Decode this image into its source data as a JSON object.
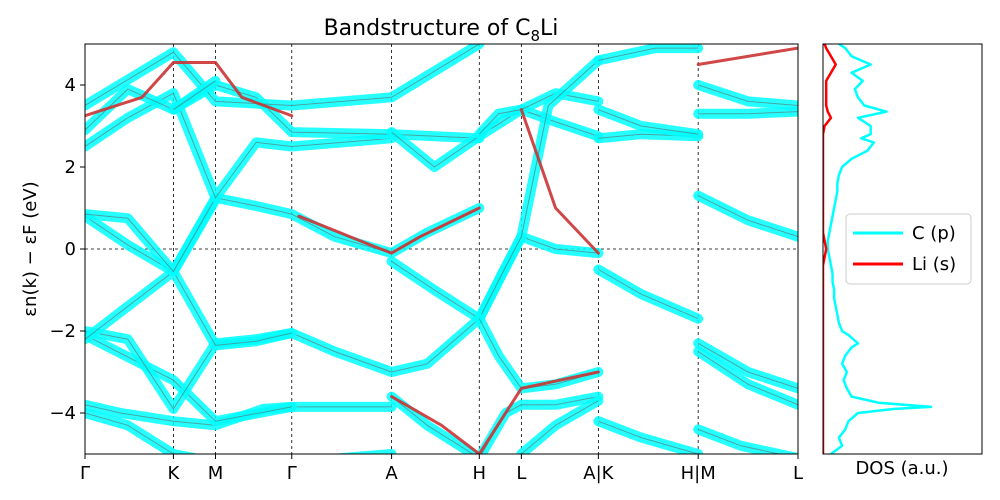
{
  "chart_data": [
    {
      "type": "line",
      "title_main": "Bandstructure of C",
      "title_sub": "8",
      "title_tail": "Li",
      "xlabel": "",
      "ylabel": "εn(k) − εF (eV)",
      "ylim": [
        -5,
        5
      ],
      "yticks": [
        -4,
        -2,
        0,
        2,
        4
      ],
      "ytick_labels": [
        "−4",
        "−2",
        "0",
        "2",
        "4"
      ],
      "kpath": [
        "Γ",
        "K",
        "M",
        "Γ",
        "A",
        "H",
        "L",
        "A|K",
        "H|M",
        "L"
      ],
      "kpos": [
        0.0,
        0.124,
        0.183,
        0.29,
        0.43,
        0.553,
        0.612,
        0.72,
        0.86,
        1.0
      ],
      "fermi_level": 0,
      "grid": "vertical dashed lines at high-symmetry points",
      "series": [
        {
          "role": "band-projection-C",
          "color": "#00ffff",
          "width": 10
        },
        {
          "role": "band-projection-Li",
          "color": "#cc3333",
          "width": 3
        }
      ],
      "bands": [
        {
          "kind": "c",
          "x": [
            0.0,
            0.06,
            0.124,
            0.183,
            0.29,
            0.43
          ],
          "y": [
            -4.0,
            -4.3,
            -5.0,
            -5.2,
            -5.2,
            -5.0
          ]
        },
        {
          "kind": "c",
          "x": [
            0.0,
            0.05,
            0.124,
            0.183,
            0.25,
            0.29,
            0.43
          ],
          "y": [
            -3.8,
            -4.0,
            -4.2,
            -4.3,
            -3.9,
            -3.85,
            -3.85
          ]
        },
        {
          "kind": "c",
          "x": [
            0.0,
            0.124,
            0.183,
            0.29
          ],
          "y": [
            -2.1,
            -3.2,
            -4.2,
            -3.85
          ]
        },
        {
          "kind": "c",
          "x": [
            0.0,
            0.06,
            0.124,
            0.183,
            0.24,
            0.29,
            0.35,
            0.43,
            0.48,
            0.553
          ],
          "y": [
            -2.0,
            -2.2,
            -3.9,
            -2.3,
            -2.2,
            -2.05,
            -2.5,
            -3.0,
            -2.8,
            -1.7
          ]
        },
        {
          "kind": "c",
          "x": [
            0.0,
            0.06,
            0.124,
            0.183,
            0.24,
            0.29
          ],
          "y": [
            -2.2,
            -1.4,
            -0.55,
            -2.35,
            -2.25,
            -2.05
          ]
        },
        {
          "kind": "c",
          "x": [
            0.0,
            0.06,
            0.124,
            0.183
          ],
          "y": [
            0.8,
            0.1,
            -0.55,
            1.2
          ]
        },
        {
          "kind": "c",
          "x": [
            0.0,
            0.06,
            0.124,
            0.183,
            0.24,
            0.29,
            0.35,
            0.43,
            0.48,
            0.553
          ],
          "y": [
            0.85,
            0.75,
            -0.55,
            1.25,
            1.05,
            0.85,
            0.3,
            -0.1,
            0.4,
            1.0
          ]
        },
        {
          "kind": "c",
          "x": [
            0.0,
            0.06,
            0.124,
            0.183,
            0.24,
            0.29,
            0.43
          ],
          "y": [
            2.5,
            3.2,
            3.8,
            1.25,
            2.6,
            2.5,
            2.7
          ]
        },
        {
          "kind": "c",
          "x": [
            0.0,
            0.06,
            0.124,
            0.183,
            0.24,
            0.29,
            0.43,
            0.553
          ],
          "y": [
            2.9,
            3.9,
            3.4,
            4.0,
            3.7,
            2.85,
            2.8,
            2.7
          ]
        },
        {
          "kind": "c",
          "x": [
            0.0,
            0.124,
            0.183,
            0.29,
            0.43,
            0.553
          ],
          "y": [
            3.5,
            4.8,
            3.6,
            3.5,
            3.7,
            5.0
          ]
        },
        {
          "kind": "c",
          "x": [
            0.124,
            0.183
          ],
          "y": [
            3.4,
            4.1
          ]
        },
        {
          "kind": "c",
          "x": [
            0.43,
            0.48,
            0.553,
            0.59,
            0.612,
            0.66,
            0.72
          ],
          "y": [
            -3.6,
            -4.3,
            -5.1,
            -4.0,
            -3.8,
            -3.8,
            -3.6
          ]
        },
        {
          "kind": "c",
          "x": [
            0.43,
            0.49,
            0.553,
            0.612,
            0.66,
            0.72
          ],
          "y": [
            -0.3,
            -1.0,
            -1.7,
            0.3,
            0.0,
            -0.1
          ]
        },
        {
          "kind": "c",
          "x": [
            0.43,
            0.49,
            0.553,
            0.612,
            0.66,
            0.72
          ],
          "y": [
            2.85,
            2.0,
            2.75,
            3.4,
            3.1,
            2.75
          ]
        },
        {
          "kind": "c",
          "x": [
            0.553,
            0.58,
            0.612,
            0.66,
            0.72
          ],
          "y": [
            2.8,
            3.3,
            3.4,
            3.8,
            3.6
          ]
        },
        {
          "kind": "c",
          "x": [
            0.553,
            0.585,
            0.612,
            0.65,
            0.72
          ],
          "y": [
            -1.7,
            -0.6,
            0.3,
            3.5,
            4.6
          ]
        },
        {
          "kind": "c",
          "x": [
            0.553,
            0.58,
            0.612,
            0.66,
            0.72
          ],
          "y": [
            -1.7,
            -2.6,
            -3.4,
            -3.3,
            -3.0
          ]
        },
        {
          "kind": "c",
          "x": [
            0.612,
            0.66,
            0.72
          ],
          "y": [
            -5.0,
            -4.3,
            -3.7
          ]
        },
        {
          "kind": "c",
          "x": [
            0.72,
            0.78,
            0.86
          ],
          "y": [
            -4.2,
            -4.6,
            -5.0
          ]
        },
        {
          "kind": "c",
          "x": [
            0.72,
            0.78,
            0.86
          ],
          "y": [
            -0.5,
            -1.1,
            -1.7
          ]
        },
        {
          "kind": "c",
          "x": [
            0.72,
            0.78,
            0.86
          ],
          "y": [
            2.7,
            2.8,
            2.75
          ]
        },
        {
          "kind": "c",
          "x": [
            0.72,
            0.78,
            0.86
          ],
          "y": [
            3.4,
            3.0,
            2.8
          ]
        },
        {
          "kind": "c",
          "x": [
            0.72,
            0.8,
            0.86
          ],
          "y": [
            4.6,
            4.9,
            4.9
          ]
        },
        {
          "kind": "c",
          "x": [
            0.86,
            0.92,
            1.0
          ],
          "y": [
            -4.4,
            -4.8,
            -5.1
          ]
        },
        {
          "kind": "c",
          "x": [
            0.86,
            0.93,
            1.0
          ],
          "y": [
            -2.3,
            -3.0,
            -3.4
          ]
        },
        {
          "kind": "c",
          "x": [
            0.86,
            0.93,
            1.0
          ],
          "y": [
            -2.5,
            -3.3,
            -3.8
          ]
        },
        {
          "kind": "c",
          "x": [
            0.86,
            0.93,
            1.0
          ],
          "y": [
            1.3,
            0.7,
            0.3
          ]
        },
        {
          "kind": "c",
          "x": [
            0.86,
            0.93,
            1.0
          ],
          "y": [
            3.3,
            3.3,
            3.35
          ]
        },
        {
          "kind": "c",
          "x": [
            0.86,
            0.93,
            1.0
          ],
          "y": [
            4.0,
            3.6,
            3.5
          ]
        },
        {
          "kind": "li",
          "x": [
            0.0,
            0.08,
            0.124,
            0.183,
            0.22,
            0.29
          ],
          "y": [
            3.25,
            3.7,
            4.55,
            4.55,
            3.7,
            3.25
          ]
        },
        {
          "kind": "li",
          "x": [
            0.3,
            0.4,
            0.43,
            0.47,
            0.553
          ],
          "y": [
            0.8,
            0.1,
            -0.1,
            0.3,
            1.0
          ]
        },
        {
          "kind": "li",
          "x": [
            0.43,
            0.5,
            0.553,
            0.612,
            0.72
          ],
          "y": [
            -3.6,
            -4.3,
            -5.0,
            -3.4,
            -3.0
          ]
        },
        {
          "kind": "li",
          "x": [
            0.612,
            0.66,
            0.72
          ],
          "y": [
            3.4,
            1.0,
            -0.1
          ]
        },
        {
          "kind": "li",
          "x": [
            0.86,
            1.0
          ],
          "y": [
            4.5,
            4.9
          ]
        }
      ]
    },
    {
      "type": "line",
      "xlabel": "DOS (a.u.)",
      "ylim": [
        -5,
        5
      ],
      "legend": "center",
      "legend_entries": [
        {
          "label": "C (p)",
          "color": "#00ffff"
        },
        {
          "label": "Li (s)",
          "color": "#ff0000"
        }
      ],
      "dos": {
        "energy": [
          -5.0,
          -4.8,
          -4.6,
          -4.4,
          -4.2,
          -4.0,
          -3.9,
          -3.85,
          -3.75,
          -3.6,
          -3.4,
          -3.2,
          -3.0,
          -2.8,
          -2.6,
          -2.4,
          -2.3,
          -2.1,
          -2.0,
          -1.8,
          -1.6,
          -1.4,
          -1.2,
          -1.0,
          -0.8,
          -0.6,
          -0.4,
          -0.2,
          0.0,
          0.2,
          0.4,
          0.6,
          0.8,
          1.0,
          1.2,
          1.4,
          1.6,
          1.8,
          2.0,
          2.2,
          2.4,
          2.6,
          2.7,
          2.8,
          3.0,
          3.2,
          3.35,
          3.5,
          3.7,
          3.9,
          4.1,
          4.3,
          4.5,
          4.7,
          4.9,
          5.0
        ],
        "c_p": [
          0.05,
          0.12,
          0.1,
          0.14,
          0.16,
          0.22,
          0.45,
          0.68,
          0.35,
          0.18,
          0.15,
          0.13,
          0.15,
          0.12,
          0.14,
          0.18,
          0.22,
          0.16,
          0.12,
          0.1,
          0.09,
          0.08,
          0.07,
          0.07,
          0.06,
          0.06,
          0.05,
          0.04,
          0.03,
          0.03,
          0.04,
          0.05,
          0.06,
          0.07,
          0.08,
          0.09,
          0.09,
          0.1,
          0.12,
          0.18,
          0.28,
          0.32,
          0.24,
          0.3,
          0.3,
          0.22,
          0.4,
          0.26,
          0.22,
          0.2,
          0.25,
          0.18,
          0.3,
          0.18,
          0.14,
          0.1
        ],
        "li_s": [
          0.0,
          0.0,
          0.0,
          0.0,
          0.0,
          0.0,
          0.0,
          0.0,
          0.0,
          0.0,
          0.0,
          0.0,
          0.0,
          0.0,
          0.0,
          0.0,
          0.0,
          0.0,
          0.0,
          0.0,
          0.0,
          0.0,
          0.0,
          0.0,
          0.0,
          0.0,
          0.0,
          0.01,
          0.02,
          0.01,
          0.0,
          0.0,
          0.0,
          0.0,
          0.0,
          0.0,
          0.0,
          0.0,
          0.0,
          0.0,
          0.0,
          0.0,
          0.0,
          0.0,
          0.01,
          0.05,
          0.03,
          0.02,
          0.02,
          0.02,
          0.02,
          0.05,
          0.08,
          0.05,
          0.02,
          0.01
        ]
      }
    }
  ]
}
